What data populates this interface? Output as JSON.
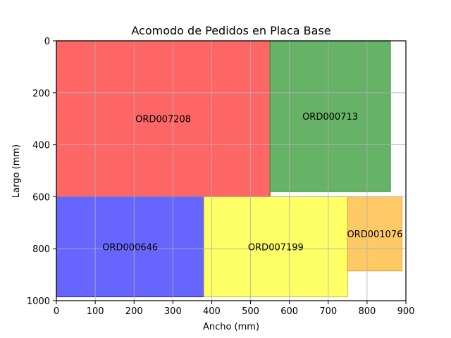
{
  "chart_data": {
    "type": "rectangle-layout",
    "title": "Acomodo de Pedidos en Placa Base",
    "xlabel": "Ancho (mm)",
    "ylabel": "Largo (mm)",
    "xlim": [
      0,
      900
    ],
    "ylim": [
      1000,
      0
    ],
    "y_inverted": true,
    "grid": true,
    "xticks": [
      0,
      100,
      200,
      300,
      400,
      500,
      600,
      700,
      800,
      900
    ],
    "yticks": [
      0,
      200,
      400,
      600,
      800,
      1000
    ],
    "rectangles": [
      {
        "label": "ORD007208",
        "x": 0,
        "y": 0,
        "width": 550,
        "height": 600,
        "color": "#ff6666",
        "edge": "#cc3333"
      },
      {
        "label": "ORD000713",
        "x": 550,
        "y": 0,
        "width": 310,
        "height": 580,
        "color": "#66b266",
        "edge": "#3e8e3e"
      },
      {
        "label": "ORD000646",
        "x": 0,
        "y": 600,
        "width": 380,
        "height": 385,
        "color": "#6666ff",
        "edge": "#3333cc"
      },
      {
        "label": "ORD007199",
        "x": 380,
        "y": 600,
        "width": 370,
        "height": 385,
        "color": "#ffff66",
        "edge": "#cccc33"
      },
      {
        "label": "ORD001076",
        "x": 750,
        "y": 600,
        "width": 140,
        "height": 285,
        "color": "#ffc966",
        "edge": "#f0a830"
      }
    ]
  }
}
